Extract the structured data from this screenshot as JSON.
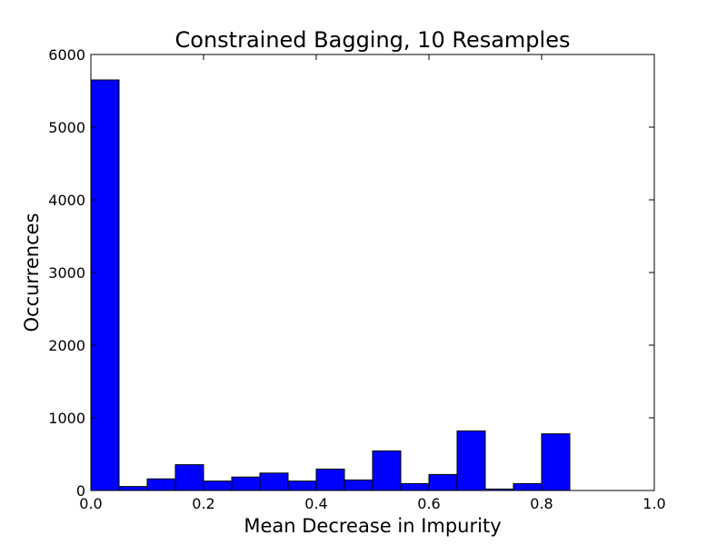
{
  "chart_data": {
    "type": "bar",
    "title": "Constrained Bagging, 10 Resamples",
    "xlabel": "Mean Decrease in Impurity",
    "ylabel": "Occurrences",
    "xlim": [
      0.0,
      1.0
    ],
    "ylim": [
      0,
      6000
    ],
    "x_ticks": [
      "0.0",
      "0.2",
      "0.4",
      "0.6",
      "0.8",
      "1.0"
    ],
    "y_ticks": [
      "0",
      "1000",
      "2000",
      "3000",
      "4000",
      "5000",
      "6000"
    ],
    "grid": false,
    "bin_width": 0.05,
    "bins": [
      {
        "x0": 0.0,
        "count": 5650
      },
      {
        "x0": 0.05,
        "count": 55
      },
      {
        "x0": 0.1,
        "count": 160
      },
      {
        "x0": 0.15,
        "count": 355
      },
      {
        "x0": 0.2,
        "count": 130
      },
      {
        "x0": 0.25,
        "count": 185
      },
      {
        "x0": 0.3,
        "count": 240
      },
      {
        "x0": 0.35,
        "count": 130
      },
      {
        "x0": 0.4,
        "count": 295
      },
      {
        "x0": 0.45,
        "count": 145
      },
      {
        "x0": 0.5,
        "count": 545
      },
      {
        "x0": 0.55,
        "count": 95
      },
      {
        "x0": 0.6,
        "count": 220
      },
      {
        "x0": 0.65,
        "count": 820
      },
      {
        "x0": 0.7,
        "count": 20
      },
      {
        "x0": 0.75,
        "count": 95
      },
      {
        "x0": 0.8,
        "count": 780
      }
    ],
    "colors": {
      "bar_fill": "#0000ff",
      "bar_stroke": "#000000"
    }
  }
}
